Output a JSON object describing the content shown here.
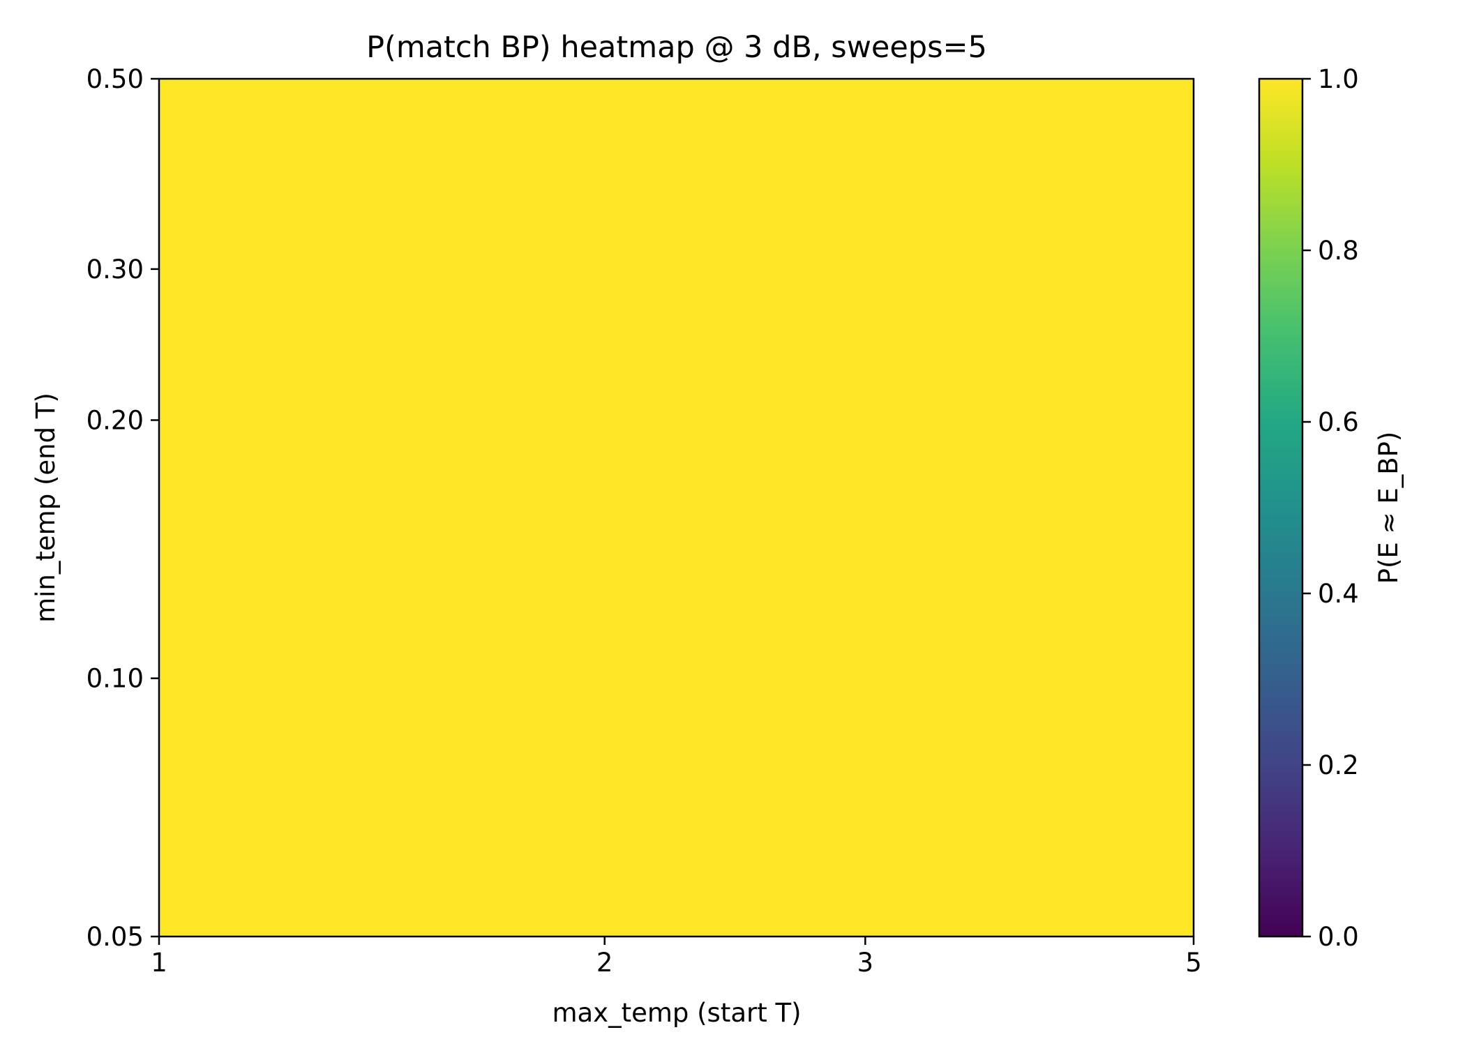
{
  "chart_data": {
    "type": "heatmap",
    "title": "P(match BP) heatmap @ 3 dB, sweeps=5",
    "xlabel": "max_temp (start T)",
    "ylabel": "min_temp (end T)",
    "x_ticks": [
      "1",
      "2",
      "3",
      "5"
    ],
    "y_ticks": [
      "0.05",
      "0.10",
      "0.20",
      "0.30",
      "0.50"
    ],
    "x": [
      1,
      2,
      3,
      5
    ],
    "y": [
      0.05,
      0.1,
      0.2,
      0.3,
      0.5
    ],
    "xlim": [
      1,
      5
    ],
    "ylim": [
      0.05,
      0.5
    ],
    "values": [
      [
        1.0,
        1.0,
        1.0,
        1.0
      ],
      [
        1.0,
        1.0,
        1.0,
        1.0
      ],
      [
        1.0,
        1.0,
        1.0,
        1.0
      ],
      [
        1.0,
        1.0,
        1.0,
        1.0
      ],
      [
        1.0,
        1.0,
        1.0,
        1.0
      ]
    ],
    "colorbar": {
      "label": "P(E ≈ E_BP)",
      "range": [
        0.0,
        1.0
      ],
      "ticks": [
        "0.0",
        "0.2",
        "0.4",
        "0.6",
        "0.8",
        "1.0"
      ],
      "colormap": "viridis"
    },
    "grid": false
  }
}
